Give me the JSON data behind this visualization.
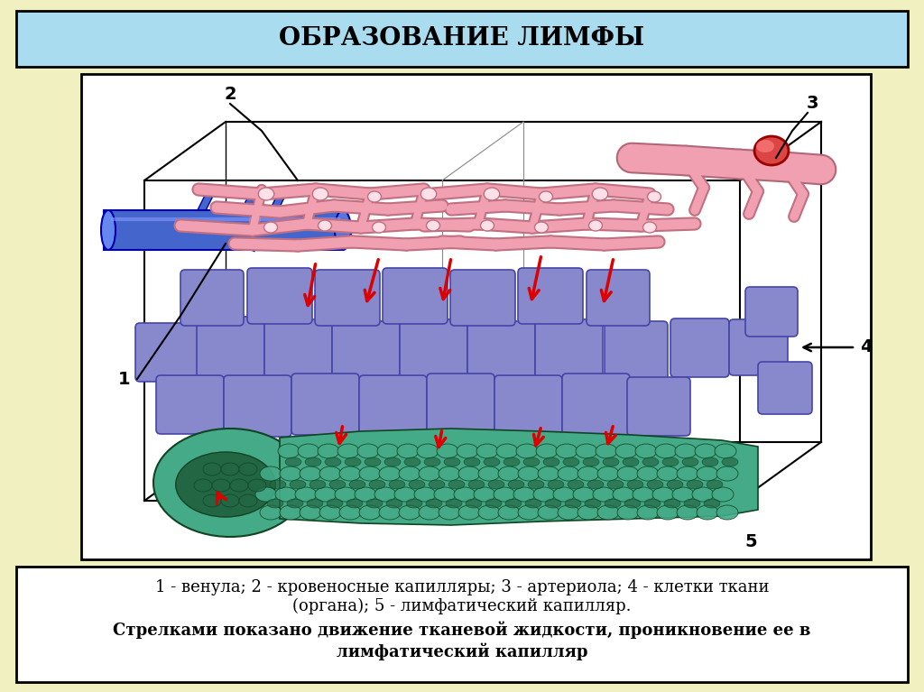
{
  "background_color": "#f0f0c0",
  "title": "ОБРАЗОВАНИЕ ЛИМФЫ",
  "title_box_color": "#aadcf0",
  "title_border_color": "#000000",
  "title_fontsize": 20,
  "caption_line1": "1 - венула; 2 - кровеносные капилляры; 3 - артериола; 4 - клетки ткани",
  "caption_line2": "(органа); 5 - лимфатический капилляр.",
  "caption_line3": "Стрелками показано движение тканевой жидкости, проникновение ее в",
  "caption_line4": "лимфатический капилляр",
  "caption_fontsize": 13,
  "image_border_color": "#000000",
  "venule_color": "#4466cc",
  "venule_edge": "#0000aa",
  "cap_pink": "#f0a0b0",
  "cap_edge": "#c07080",
  "arteriole_color": "#f0a0b0",
  "rbc_color": "#dd4444",
  "cell_color": "#8888cc",
  "cell_edge": "#4444aa",
  "lymph_light": "#44aa88",
  "lymph_dark": "#226644",
  "lymph_edge": "#114422",
  "arrow_color": "#dd0000"
}
